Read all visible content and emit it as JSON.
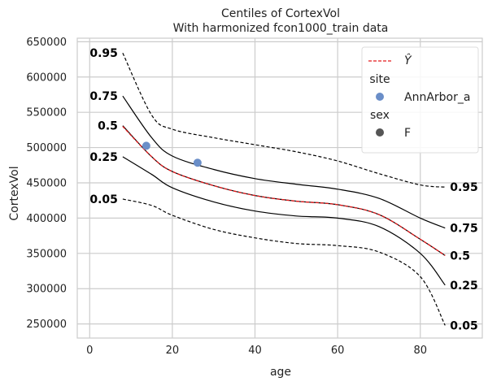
{
  "chart_data": {
    "type": "line",
    "title": "Centiles of CortexVol",
    "subtitle": "With harmonized fcon1000_train data",
    "xlabel": "age",
    "ylabel": "CortexVol",
    "xlim": [
      -3,
      95
    ],
    "ylim": [
      230000,
      655000
    ],
    "xticks": [
      0,
      20,
      40,
      60,
      80
    ],
    "yticks": [
      250000,
      300000,
      350000,
      400000,
      450000,
      500000,
      550000,
      600000,
      650000
    ],
    "grid": true,
    "legend": {
      "placement": "top-right",
      "yhat_label": "Ŷ",
      "site_title": "site",
      "site_entry": "AnnArbor_a",
      "sex_title": "sex",
      "sex_entry": "F"
    },
    "colors": {
      "centile": "#000000",
      "prediction": "#e41a1c",
      "point": "#6a8ec8",
      "grid": "#cccccc",
      "legend_marker": "#555555"
    },
    "x": [
      8,
      15,
      20,
      30,
      40,
      50,
      60,
      70,
      80,
      86
    ],
    "series": [
      {
        "name": "0.05",
        "dashed": true,
        "values": [
          427000,
          418000,
          404000,
          384000,
          372000,
          364000,
          361000,
          352000,
          317000,
          248000
        ]
      },
      {
        "name": "0.25",
        "dashed": false,
        "values": [
          487000,
          462000,
          443000,
          423000,
          410000,
          403000,
          400000,
          388000,
          350000,
          305000
        ]
      },
      {
        "name": "0.5",
        "dashed": false,
        "values": [
          531000,
          487000,
          466000,
          446000,
          432000,
          424000,
          419000,
          405000,
          370000,
          347000
        ]
      },
      {
        "name": "0.75",
        "dashed": false,
        "values": [
          573000,
          514000,
          488000,
          469000,
          456000,
          448000,
          441000,
          428000,
          400000,
          386000
        ]
      },
      {
        "name": "0.95",
        "dashed": true,
        "values": [
          634000,
          546000,
          526000,
          514000,
          504000,
          494000,
          481000,
          463000,
          447000,
          444000
        ]
      }
    ],
    "prediction": {
      "name": "Ŷ",
      "x": [
        8,
        15,
        20,
        30,
        40,
        50,
        60,
        70,
        80,
        86
      ],
      "values": [
        530000,
        487000,
        466000,
        446000,
        432000,
        424000,
        419000,
        405000,
        370000,
        347000
      ]
    },
    "points": [
      {
        "x": 13.7,
        "y": 502500
      },
      {
        "x": 26.1,
        "y": 478500
      }
    ],
    "left_labels": [
      {
        "text": "0.95",
        "x": 8,
        "y": 634000
      },
      {
        "text": "0.75",
        "x": 8,
        "y": 573000
      },
      {
        "text": "0.5",
        "x": 8,
        "y": 531000
      },
      {
        "text": "0.25",
        "x": 8,
        "y": 487000
      },
      {
        "text": "0.05",
        "x": 8,
        "y": 427000
      }
    ],
    "right_labels": [
      {
        "text": "0.95",
        "x": 86,
        "y": 444000
      },
      {
        "text": "0.75",
        "x": 86,
        "y": 386000
      },
      {
        "text": "0.5",
        "x": 86,
        "y": 347000
      },
      {
        "text": "0.25",
        "x": 86,
        "y": 305000
      },
      {
        "text": "0.05",
        "x": 86,
        "y": 248000
      }
    ]
  }
}
